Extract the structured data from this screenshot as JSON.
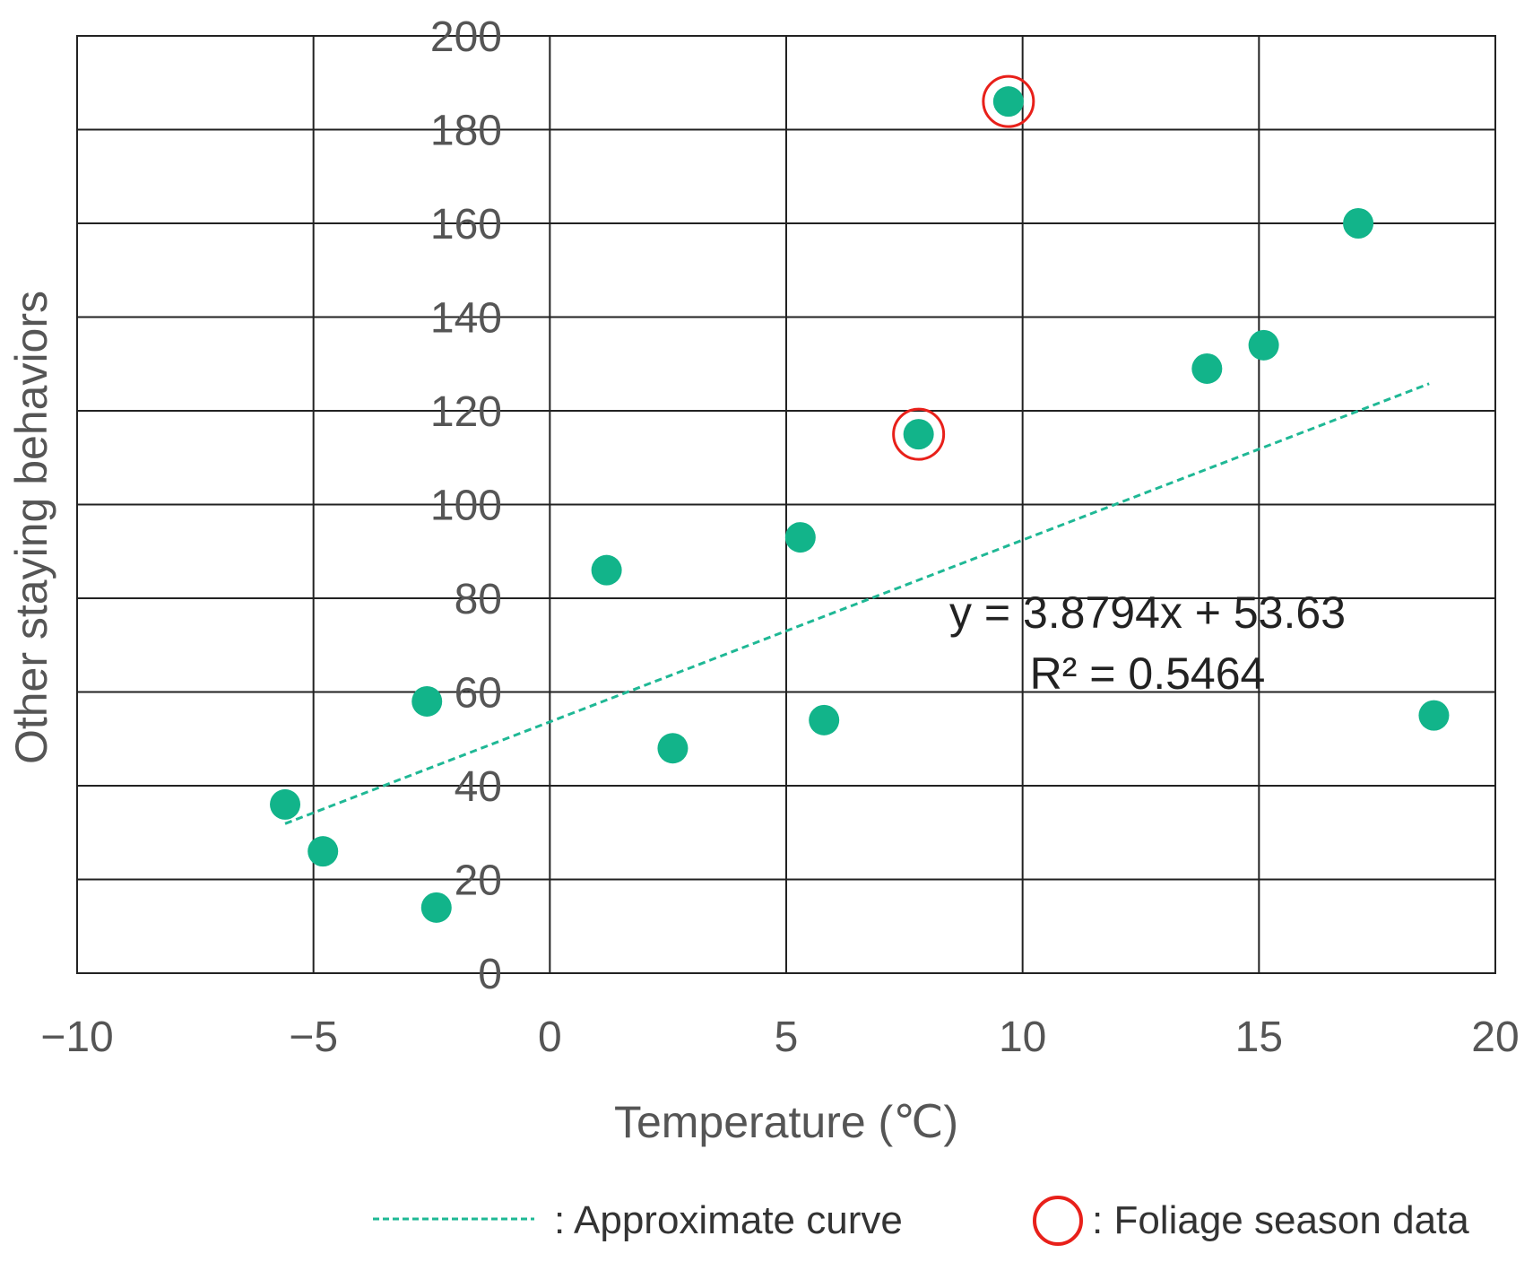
{
  "chart_data": {
    "type": "scatter",
    "xlabel": "Temperature (℃)",
    "ylabel": "Other staying behaviors",
    "xlim": [
      -10,
      20
    ],
    "ylim": [
      0,
      200
    ],
    "x_ticks": [
      -10,
      -5,
      0,
      5,
      10,
      15,
      20
    ],
    "y_ticks": [
      0,
      20,
      40,
      60,
      80,
      100,
      120,
      140,
      160,
      180,
      200
    ],
    "x_tick_labels": [
      "−10",
      "−5",
      "0",
      "5",
      "10",
      "15",
      "20"
    ],
    "y_tick_labels": [
      "0",
      "20",
      "40",
      "60",
      "80",
      "100",
      "120",
      "140",
      "160",
      "180",
      "200"
    ],
    "grid": true,
    "points": [
      {
        "x": -5.6,
        "y": 36,
        "foliage": false
      },
      {
        "x": -4.8,
        "y": 26,
        "foliage": false
      },
      {
        "x": -2.6,
        "y": 58,
        "foliage": false
      },
      {
        "x": -2.4,
        "y": 14,
        "foliage": false
      },
      {
        "x": 1.2,
        "y": 86,
        "foliage": false
      },
      {
        "x": 2.6,
        "y": 48,
        "foliage": false
      },
      {
        "x": 5.3,
        "y": 93,
        "foliage": false
      },
      {
        "x": 5.8,
        "y": 54,
        "foliage": false
      },
      {
        "x": 7.8,
        "y": 115,
        "foliage": true
      },
      {
        "x": 9.7,
        "y": 186,
        "foliage": true
      },
      {
        "x": 13.9,
        "y": 129,
        "foliage": false
      },
      {
        "x": 15.1,
        "y": 134,
        "foliage": false
      },
      {
        "x": 17.1,
        "y": 160,
        "foliage": false
      },
      {
        "x": 18.7,
        "y": 55,
        "foliage": false
      }
    ],
    "trendline": {
      "slope": 3.8794,
      "intercept": 53.63,
      "x_range": [
        -5.6,
        18.6
      ],
      "equation": "y = 3.8794x + 53.63",
      "r_squared": "R² = 0.5464"
    },
    "legend": {
      "trend_label": ": Approximate curve",
      "foliage_label": ": Foliage season data",
      "position": "bottom-right"
    },
    "colors": {
      "point": "#12b48a",
      "trend": "#1fb895",
      "highlight": "#e8201a",
      "grid": "#222222"
    }
  }
}
